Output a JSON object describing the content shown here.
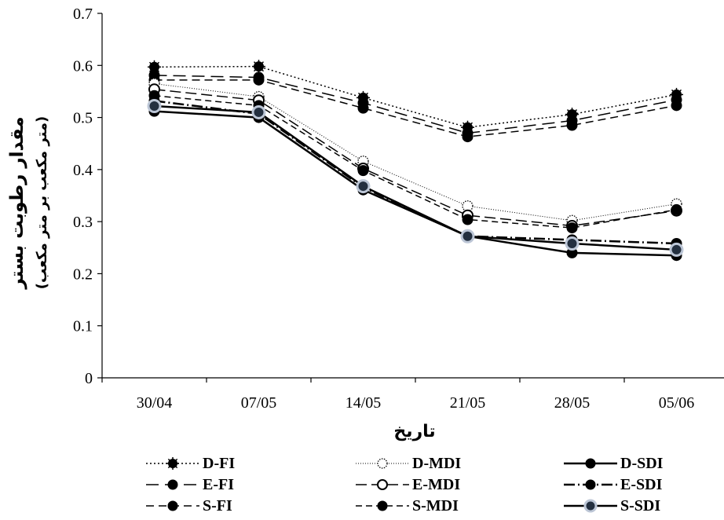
{
  "chart_data": {
    "type": "line",
    "xlabel": "تاریخ",
    "ylabel": "مقدار رطوبت بستر",
    "ylabel_sub": "(متر مکعب بر متر مکعب)",
    "categories": [
      "30/04",
      "07/05",
      "14/05",
      "21/05",
      "28/05",
      "05/06"
    ],
    "ylim": [
      0,
      0.7
    ],
    "yticks": [
      "0",
      "0.1",
      "0.2",
      "0.3",
      "0.4",
      "0.5",
      "0.6",
      "0.7"
    ],
    "grid": false,
    "legend_position": "bottom",
    "series": [
      {
        "name": "D-FI",
        "dash": "2 3",
        "width": 1.5,
        "marker": "star",
        "values": [
          0.597,
          0.598,
          0.538,
          0.481,
          0.506,
          0.544
        ]
      },
      {
        "name": "E-FI",
        "dash": "16 8",
        "width": 1.5,
        "marker": "filled",
        "values": [
          0.581,
          0.577,
          0.528,
          0.47,
          0.494,
          0.534
        ]
      },
      {
        "name": "S-FI",
        "dash": "10 6",
        "width": 1.5,
        "marker": "filled",
        "values": [
          0.572,
          0.572,
          0.518,
          0.463,
          0.485,
          0.523
        ]
      },
      {
        "name": "D-MDI",
        "dash": "1 2",
        "width": 1,
        "marker": "dotted-open",
        "values": [
          0.565,
          0.54,
          0.416,
          0.33,
          0.302,
          0.334
        ]
      },
      {
        "name": "E-MDI",
        "dash": "14 6",
        "width": 1.5,
        "marker": "open",
        "values": [
          0.554,
          0.533,
          0.402,
          0.312,
          0.292,
          0.321
        ]
      },
      {
        "name": "S-MDI",
        "dash": "8 5",
        "width": 1.5,
        "marker": "filled",
        "values": [
          0.542,
          0.523,
          0.398,
          0.304,
          0.288,
          0.323
        ]
      },
      {
        "name": "D-SDI",
        "dash": "",
        "width": 2.5,
        "marker": "filled",
        "values": [
          0.512,
          0.5,
          0.361,
          0.272,
          0.24,
          0.235
        ]
      },
      {
        "name": "E-SDI",
        "dash": "14 4 2 4",
        "width": 2.5,
        "marker": "filled",
        "values": [
          0.532,
          0.507,
          0.366,
          0.272,
          0.265,
          0.258
        ]
      },
      {
        "name": "S-SDI",
        "dash": "",
        "width": 2.5,
        "marker": "ring",
        "values": [
          0.522,
          0.51,
          0.368,
          0.272,
          0.258,
          0.246
        ]
      }
    ]
  }
}
